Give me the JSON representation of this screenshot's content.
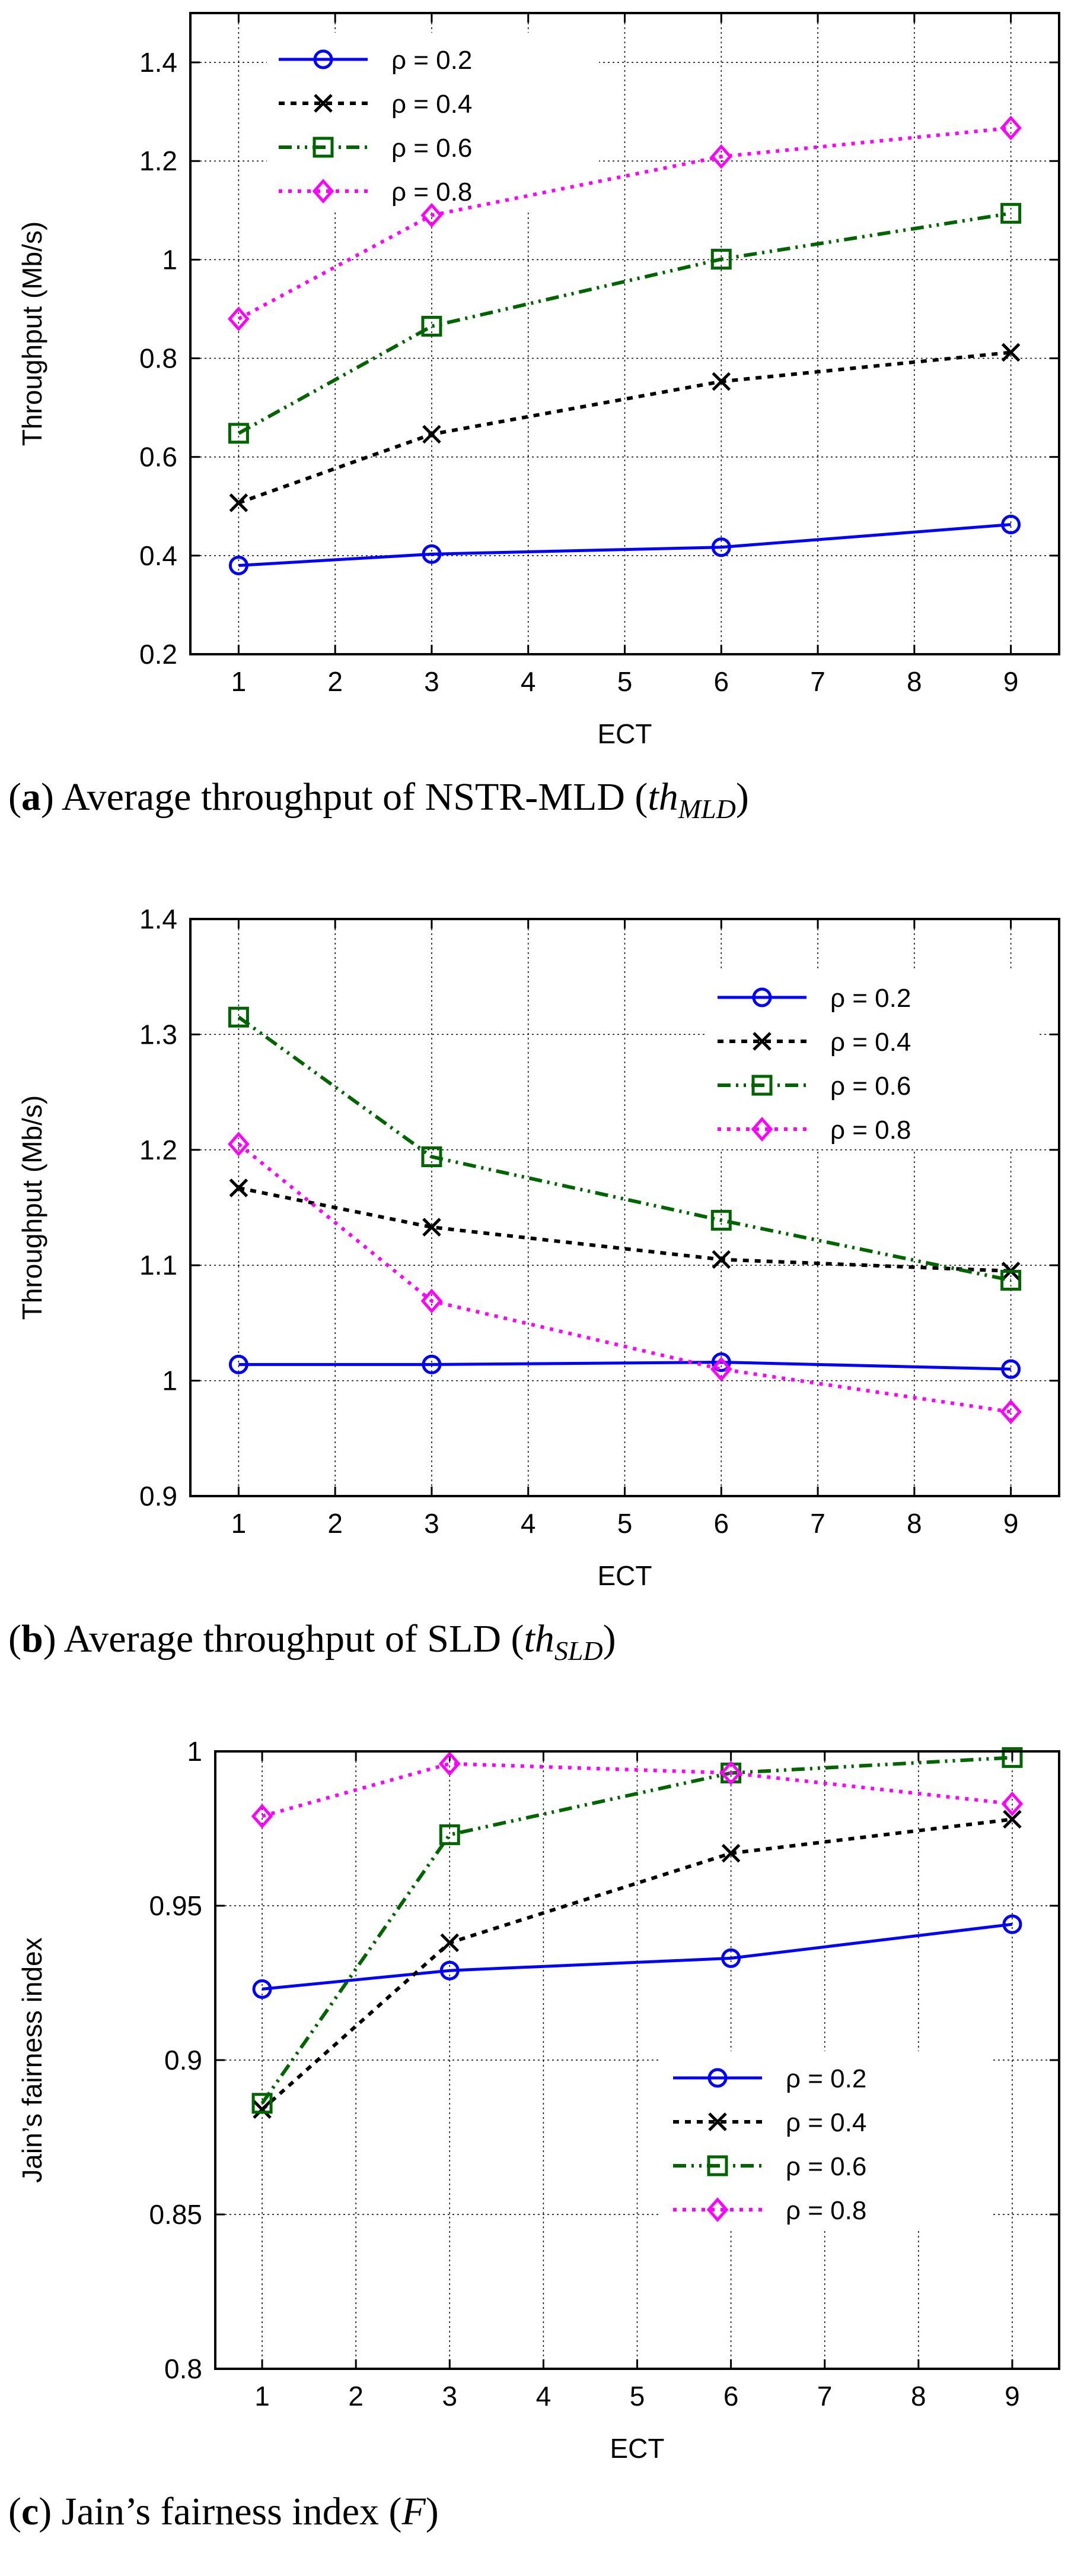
{
  "chart_data": [
    {
      "type": "line",
      "caption_label": "a",
      "caption_text": " Average throughput of NSTR-MLD (",
      "caption_math": "th",
      "caption_sub": "MLD",
      "caption_end": ")",
      "xlabel": "ECT",
      "ylabel": "Throughput (Mb/s)",
      "xlim": [
        0.5,
        9.5
      ],
      "ylim": [
        0.2,
        1.5
      ],
      "xticks": [
        "1",
        "2",
        "3",
        "4",
        "5",
        "6",
        "7",
        "8",
        "9"
      ],
      "yticks": [
        "0.2",
        "0.4",
        "0.6",
        "0.8",
        "1",
        "1.2",
        "1.4"
      ],
      "grid": true,
      "legend_position": "top-left",
      "x": [
        1,
        3,
        6,
        9
      ],
      "series": [
        {
          "name": "ρ = 0.2",
          "values": [
            0.38,
            0.403,
            0.417,
            0.463
          ]
        },
        {
          "name": "ρ = 0.4",
          "values": [
            0.507,
            0.646,
            0.753,
            0.812
          ]
        },
        {
          "name": "ρ = 0.6",
          "values": [
            0.648,
            0.865,
            1.001,
            1.094
          ]
        },
        {
          "name": "ρ = 0.8",
          "values": [
            0.88,
            1.09,
            1.209,
            1.267
          ]
        }
      ]
    },
    {
      "type": "line",
      "caption_label": "b",
      "caption_text": " Average throughput of SLD (",
      "caption_math": "th",
      "caption_sub": "SLD",
      "caption_end": ")",
      "xlabel": "ECT",
      "ylabel": "Throughput (Mb/s)",
      "xlim": [
        0.5,
        9.5
      ],
      "ylim": [
        0.9,
        1.4
      ],
      "xticks": [
        "1",
        "2",
        "3",
        "4",
        "5",
        "6",
        "7",
        "8",
        "9"
      ],
      "yticks": [
        "0.9",
        "1",
        "1.1",
        "1.2",
        "1.3",
        "1.4"
      ],
      "grid": true,
      "legend_position": "top-right",
      "x": [
        1,
        3,
        6,
        9
      ],
      "series": [
        {
          "name": "ρ = 0.2",
          "values": [
            1.014,
            1.014,
            1.016,
            1.01
          ]
        },
        {
          "name": "ρ = 0.4",
          "values": [
            1.167,
            1.133,
            1.105,
            1.095
          ]
        },
        {
          "name": "ρ = 0.6",
          "values": [
            1.315,
            1.194,
            1.139,
            1.087
          ]
        },
        {
          "name": "ρ = 0.8",
          "values": [
            1.205,
            1.069,
            1.01,
            0.973
          ]
        }
      ]
    },
    {
      "type": "line",
      "caption_label": "c",
      "caption_text": " Jain’s fairness index (",
      "caption_math": "F",
      "caption_sub": "",
      "caption_end": ")",
      "xlabel": "ECT",
      "ylabel": "Jain’s fairness index",
      "xlim": [
        0.5,
        9.5
      ],
      "ylim": [
        0.8,
        1.0
      ],
      "xticks": [
        "1",
        "2",
        "3",
        "4",
        "5",
        "6",
        "7",
        "8",
        "9"
      ],
      "yticks": [
        "0.8",
        "0.85",
        "0.9",
        "0.95",
        "1"
      ],
      "grid": true,
      "legend_position": "center-right",
      "x": [
        1,
        3,
        6,
        9
      ],
      "series": [
        {
          "name": "ρ = 0.2",
          "values": [
            0.923,
            0.929,
            0.933,
            0.944
          ]
        },
        {
          "name": "ρ = 0.4",
          "values": [
            0.884,
            0.938,
            0.967,
            0.978
          ]
        },
        {
          "name": "ρ = 0.6",
          "values": [
            0.886,
            0.973,
            0.993,
            0.998
          ]
        },
        {
          "name": "ρ = 0.8",
          "values": [
            0.979,
            0.996,
            0.993,
            0.983
          ]
        }
      ]
    }
  ],
  "series_colors": [
    "#0000ff",
    "#000000",
    "#006400",
    "#ff00ff"
  ],
  "series_markers": [
    "circle",
    "x",
    "square",
    "diamond"
  ]
}
